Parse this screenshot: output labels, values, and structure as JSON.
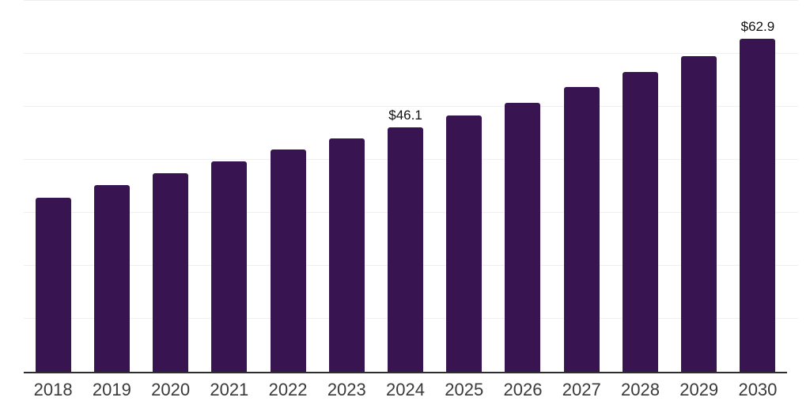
{
  "chart_data": {
    "type": "bar",
    "title": "",
    "xlabel": "",
    "ylabel": "",
    "categories": [
      "2018",
      "2019",
      "2020",
      "2021",
      "2022",
      "2023",
      "2024",
      "2025",
      "2026",
      "2027",
      "2028",
      "2029",
      "2030"
    ],
    "values": [
      32.8,
      35.3,
      37.4,
      39.7,
      42.0,
      44.1,
      46.1,
      48.4,
      50.8,
      53.7,
      56.6,
      59.6,
      62.9
    ],
    "data_labels": {
      "2024": "$46.1",
      "2030": "$62.9"
    },
    "ylim": [
      0,
      70
    ],
    "grid_step": 10,
    "grid": true,
    "legend": false,
    "colors": {
      "bar": "#381451",
      "gridline": "#efefef",
      "axis": "#2e2e2e",
      "tick_label": "#3a3a3a",
      "data_label": "#111111",
      "background": "#ffffff"
    }
  }
}
